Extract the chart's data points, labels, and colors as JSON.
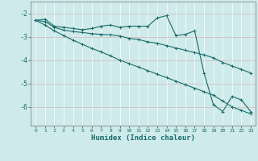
{
  "title": "",
  "xlabel": "Humidex (Indice chaleur)",
  "xlim": [
    -0.5,
    23.5
  ],
  "ylim": [
    -6.8,
    -1.5
  ],
  "xticks": [
    0,
    1,
    2,
    3,
    4,
    5,
    6,
    7,
    8,
    9,
    10,
    11,
    12,
    13,
    14,
    15,
    16,
    17,
    18,
    19,
    20,
    21,
    22,
    23
  ],
  "yticks": [
    -2,
    -3,
    -4,
    -5,
    -6
  ],
  "bg_color": "#ceeaea",
  "line_color": "#1a6b6b",
  "grid_color": "#b8d8d8",
  "line1_y": [
    -2.3,
    -2.25,
    -2.55,
    -2.6,
    -2.65,
    -2.7,
    -2.65,
    -2.55,
    -2.5,
    -2.6,
    -2.55,
    -2.55,
    -2.55,
    -2.2,
    -2.1,
    -2.95,
    -2.9,
    -2.75,
    -4.55,
    -5.9,
    -6.2,
    -5.55,
    -5.7,
    -6.2
  ],
  "line2_y": [
    -2.3,
    -2.35,
    -2.6,
    -2.72,
    -2.78,
    -2.82,
    -2.87,
    -2.9,
    -2.92,
    -2.97,
    -3.07,
    -3.12,
    -3.22,
    -3.28,
    -3.38,
    -3.48,
    -3.58,
    -3.68,
    -3.78,
    -3.9,
    -4.1,
    -4.25,
    -4.4,
    -4.55
  ],
  "line3_y": [
    -2.3,
    -2.5,
    -2.75,
    -2.95,
    -3.15,
    -3.32,
    -3.5,
    -3.65,
    -3.82,
    -4.0,
    -4.15,
    -4.3,
    -4.45,
    -4.6,
    -4.75,
    -4.9,
    -5.05,
    -5.2,
    -5.35,
    -5.5,
    -5.75,
    -6.0,
    -6.15,
    -6.3
  ]
}
